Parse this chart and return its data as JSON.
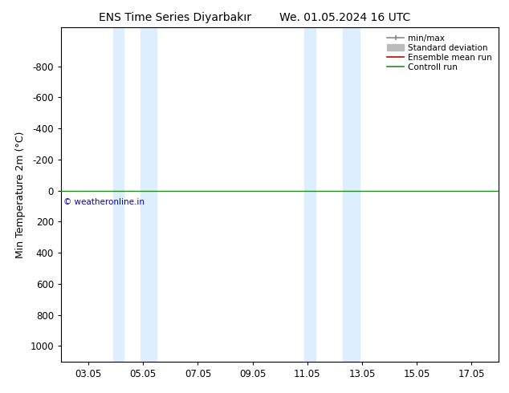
{
  "title": "ENS Time Series Diyarbakır",
  "title2": "We. 01.05.2024 16 UTC",
  "ylabel": "Min Temperature 2m (°C)",
  "yticks": [
    -800,
    -600,
    -400,
    -200,
    0,
    200,
    400,
    600,
    800,
    1000
  ],
  "xtick_labels": [
    "03.05",
    "05.05",
    "07.05",
    "09.05",
    "11.05",
    "13.05",
    "15.05",
    "17.05"
  ],
  "xtick_positions": [
    3,
    5,
    7,
    9,
    11,
    13,
    15,
    17
  ],
  "shaded_bands": [
    {
      "x_start": 3.9,
      "x_end": 4.3
    },
    {
      "x_start": 4.9,
      "x_end": 5.5
    },
    {
      "x_start": 10.9,
      "x_end": 11.3
    },
    {
      "x_start": 12.3,
      "x_end": 12.9
    }
  ],
  "green_line_y": 0,
  "control_run_color": "#228B22",
  "ensemble_mean_color": "#cc0000",
  "minmax_color": "#888888",
  "stddev_color": "#bbbbbb",
  "band_color": "#ddeeff",
  "copyright_text": "© weatheronline.in",
  "copyright_color": "#0000cc",
  "background_color": "#ffffff",
  "xlim": [
    2.0,
    18.0
  ],
  "ylim_top": -1050,
  "ylim_bottom": 1100,
  "title_fontsize": 10,
  "ylabel_fontsize": 9,
  "tick_fontsize": 8.5,
  "legend_fontsize": 7.5
}
